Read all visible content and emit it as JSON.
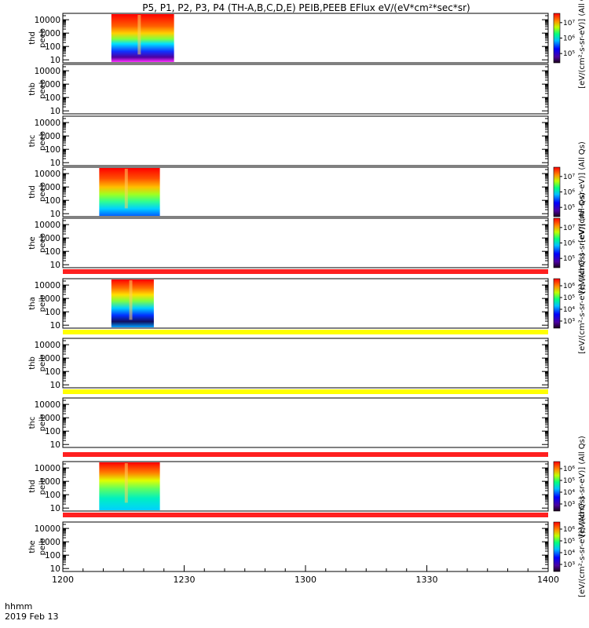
{
  "chart_data": {
    "type": "heatmap",
    "title": "P5, P1, P2, P3, P4 (TH-A,B,C,D,E) PEIB,PEEB EFlux eV/(eV*cm²*sec*sr)",
    "x_axis": {
      "label_line1": "hhmm",
      "label_line2": "2019 Feb 13",
      "ticks": [
        "1200",
        "1230",
        "1300",
        "1330",
        "1400"
      ],
      "range_minutes_after_1200": [
        0,
        120
      ]
    },
    "y_ticks": [
      "10",
      "100",
      "1000",
      "10000"
    ],
    "y_scale": "log",
    "colorbar_ticks": {
      "electron": [
        "10⁵",
        "10⁶",
        "10⁷"
      ],
      "ion": [
        "10³",
        "10⁴",
        "10⁵",
        "10⁶"
      ]
    },
    "colorbar_labels": {
      "first": "[eV/(cm²-s-sr-eV)] (All Qs)",
      "electron": "[eV/(cm²-s-sr-eV)] (All Qs)",
      "ion": "[eV/(cm²-s-sr-eV)] (All Qs)"
    },
    "panels": [
      {
        "label": [
          "thd",
          "peeb"
        ],
        "data_minutes": [
          12,
          27.5
        ],
        "colorbar": "electron"
      },
      {
        "label": [
          "thb",
          "peeb"
        ],
        "data_minutes": null,
        "colorbar": null
      },
      {
        "label": [
          "thc",
          "peeb"
        ],
        "data_minutes": null,
        "colorbar": null
      },
      {
        "label": [
          "thd",
          "peeb"
        ],
        "data_minutes": [
          9,
          24
        ],
        "colorbar": "electron"
      },
      {
        "label": [
          "the",
          "peeb"
        ],
        "data_minutes": null,
        "colorbar": "electron"
      },
      {
        "label": [
          "tha",
          "peib"
        ],
        "data_minutes": [
          12,
          22.5
        ],
        "colorbar": "ion"
      },
      {
        "label": [
          "thb",
          "peib"
        ],
        "data_minutes": null,
        "colorbar": null
      },
      {
        "label": [
          "thc",
          "peib"
        ],
        "data_minutes": null,
        "colorbar": null
      },
      {
        "label": [
          "thd",
          "peib"
        ],
        "data_minutes": [
          9,
          24
        ],
        "colorbar": "ion"
      },
      {
        "label": [
          "the",
          "peib"
        ],
        "data_minutes": null,
        "colorbar": "ion"
      }
    ],
    "horizontal_bands": [
      {
        "after_panel": 5,
        "color": "#ff2020"
      },
      {
        "after_panel": 6,
        "color": "#ffff00"
      },
      {
        "after_panel": 7,
        "color": "#ffff00"
      },
      {
        "after_panel": 8,
        "color": "#ff2020"
      },
      {
        "after_panel": 9,
        "color": "#ff2020"
      }
    ],
    "colormap": [
      "#3a006a",
      "#0000ff",
      "#00a0ff",
      "#00ffa0",
      "#a0ff00",
      "#ffff00",
      "#ff8000",
      "#ff0000"
    ]
  }
}
